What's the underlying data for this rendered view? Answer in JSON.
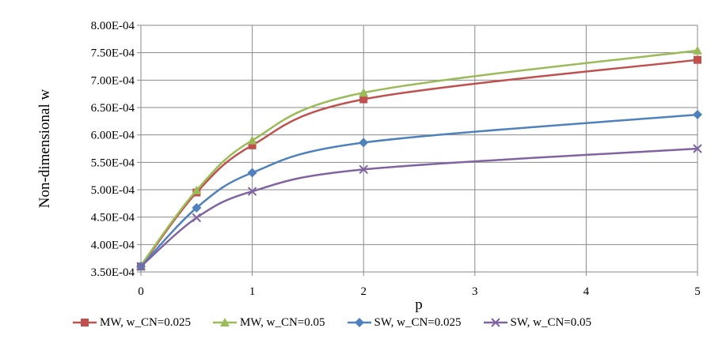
{
  "chart_data": {
    "type": "line",
    "title": "",
    "xlabel": "p",
    "ylabel": "Non-dimensional w",
    "x": [
      0,
      0.5,
      1,
      2,
      5
    ],
    "xticks": [
      0,
      1,
      2,
      3,
      4,
      5
    ],
    "xlim": [
      0,
      5
    ],
    "ylim": [
      0.00035,
      0.0008
    ],
    "yticks": [
      "3.50E-04",
      "4.00E-04",
      "4.50E-04",
      "5.00E-04",
      "5.50E-04",
      "6.00E-04",
      "6.50E-04",
      "7.00E-04",
      "7.50E-04",
      "8.00E-04"
    ],
    "ytick_values": [
      0.00035,
      0.0004,
      0.00045,
      0.0005,
      0.00055,
      0.0006,
      0.00065,
      0.0007,
      0.00075,
      0.0008
    ],
    "grid": true,
    "legend_position": "bottom",
    "series": [
      {
        "name": "MW, w_CN=0.025",
        "color": "#c0504d",
        "marker": "square",
        "values": [
          0.00036,
          0.000495,
          0.000581,
          0.000665,
          0.000737
        ]
      },
      {
        "name": "MW, w_CN=0.05",
        "color": "#9bbb59",
        "marker": "triangle",
        "values": [
          0.000362,
          0.000499,
          0.00059,
          0.000677,
          0.000754
        ]
      },
      {
        "name": "SW, w_CN=0.025",
        "color": "#4f81bd",
        "marker": "diamond",
        "values": [
          0.00036,
          0.000467,
          0.000531,
          0.000586,
          0.000637
        ]
      },
      {
        "name": "SW, w_CN=0.05",
        "color": "#8064a2",
        "marker": "x",
        "values": [
          0.00036,
          0.000449,
          0.000497,
          0.000537,
          0.000575
        ]
      }
    ]
  }
}
